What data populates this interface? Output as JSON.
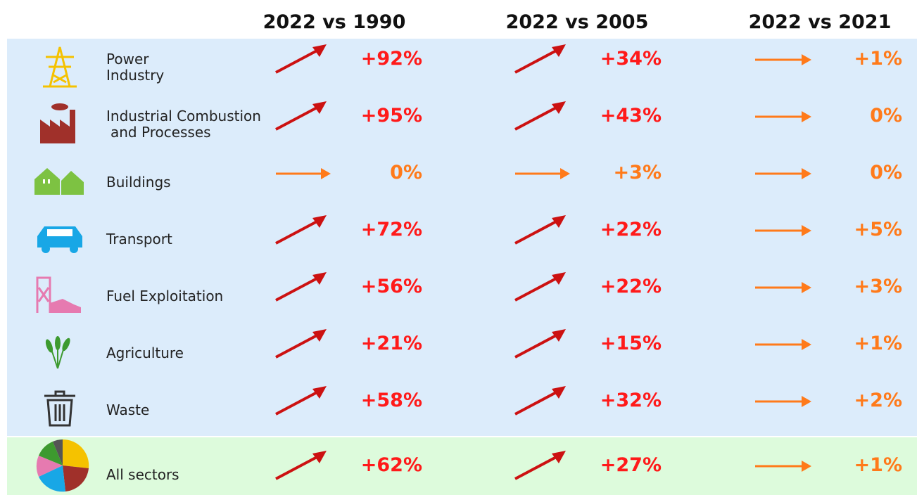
{
  "header": {
    "columns": [
      "2022 vs 1990",
      "2022 vs 2005",
      "2022 vs 2021"
    ]
  },
  "table": {
    "rows": [
      {
        "sector": [
          "Power",
          "Industry"
        ],
        "changes": [
          "+92%",
          "+34%",
          "+1%"
        ]
      },
      {
        "sector": [
          "Industrial Combustion",
          "and Processes"
        ],
        "changes": [
          "+95%",
          "+43%",
          "0%"
        ]
      },
      {
        "sector": [
          "Buildings"
        ],
        "changes": [
          "0%",
          "+3%",
          "0%"
        ]
      },
      {
        "sector": [
          "Transport"
        ],
        "changes": [
          "+72%",
          "+22%",
          "+5%"
        ]
      },
      {
        "sector": [
          "Fuel Exploitation"
        ],
        "changes": [
          "+56%",
          "+22%",
          "+3%"
        ]
      },
      {
        "sector": [
          "Agriculture"
        ],
        "changes": [
          "+21%",
          "+15%",
          "+1%"
        ]
      },
      {
        "sector": [
          "Waste"
        ],
        "changes": [
          "+58%",
          "+32%",
          "+2%"
        ]
      },
      {
        "sector": [
          "All sectors"
        ],
        "changes": [
          "+62%",
          "+27%",
          "+1%"
        ]
      }
    ]
  }
}
